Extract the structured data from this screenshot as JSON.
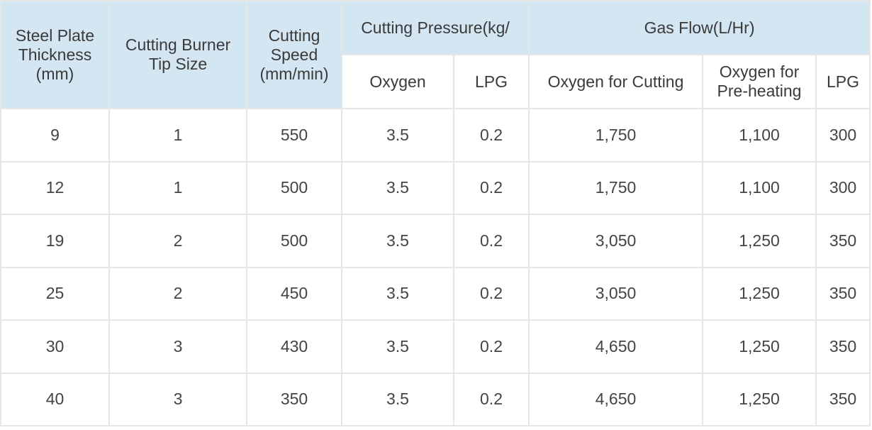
{
  "table": {
    "headers": {
      "thickness": "Steel Plate Thickness (mm)",
      "tip_size": "Cutting Burner Tip Size",
      "speed": "Cutting Speed (mm/min)",
      "pressure_group": "Cutting Pressure(kg/",
      "gas_flow_group": "Gas Flow(L/Hr)",
      "pressure_oxygen": "Oxygen",
      "pressure_lpg": "LPG",
      "flow_oxygen_cutting": "Oxygen for Cutting",
      "flow_oxygen_preheating": "Oxygen for Pre-heating",
      "flow_lpg": "LPG"
    },
    "rows": [
      {
        "thickness": "9",
        "tip": "1",
        "speed": "550",
        "p_oxygen": "3.5",
        "p_lpg": "0.2",
        "f_oxygen_cut": "1,750",
        "f_oxygen_pre": "1,100",
        "f_lpg": "300"
      },
      {
        "thickness": "12",
        "tip": "1",
        "speed": "500",
        "p_oxygen": "3.5",
        "p_lpg": "0.2",
        "f_oxygen_cut": "1,750",
        "f_oxygen_pre": "1,100",
        "f_lpg": "300"
      },
      {
        "thickness": "19",
        "tip": "2",
        "speed": "500",
        "p_oxygen": "3.5",
        "p_lpg": "0.2",
        "f_oxygen_cut": "3,050",
        "f_oxygen_pre": "1,250",
        "f_lpg": "350"
      },
      {
        "thickness": "25",
        "tip": "2",
        "speed": "450",
        "p_oxygen": "3.5",
        "p_lpg": "0.2",
        "f_oxygen_cut": "3,050",
        "f_oxygen_pre": "1,250",
        "f_lpg": "350"
      },
      {
        "thickness": "30",
        "tip": "3",
        "speed": "430",
        "p_oxygen": "3.5",
        "p_lpg": "0.2",
        "f_oxygen_cut": "4,650",
        "f_oxygen_pre": "1,250",
        "f_lpg": "350"
      },
      {
        "thickness": "40",
        "tip": "3",
        "speed": "350",
        "p_oxygen": "3.5",
        "p_lpg": "0.2",
        "f_oxygen_cut": "4,650",
        "f_oxygen_pre": "1,250",
        "f_lpg": "350"
      }
    ]
  },
  "colors": {
    "header_bg": "#d3e6f1",
    "border": "#e6e6e6",
    "text": "#444444"
  }
}
